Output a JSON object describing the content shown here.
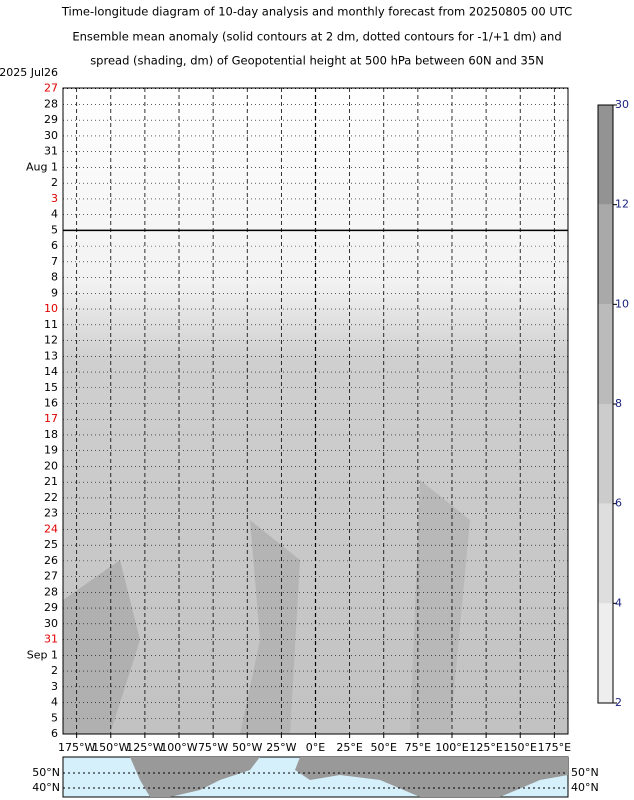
{
  "chart_data": {
    "type": "hovmoller",
    "title": [
      "Time-longitude diagram of 10-day analysis and monthly forecast from 20250805 00 UTC",
      "Ensemble mean anomaly (solid contours at 2 dm, dotted contours for -1/+1 dm) and",
      "spread (shading, dm) of Geopotential height at 500 hPa between 60N and 35N"
    ],
    "categories": [
      "2025  Jul26",
      "27",
      "28",
      "29",
      "30",
      "31",
      "Aug 1",
      "2",
      "3",
      "4",
      "5",
      "6",
      "7",
      "8",
      "9",
      "10",
      "11",
      "12",
      "13",
      "14",
      "15",
      "16",
      "17",
      "18",
      "19",
      "20",
      "21",
      "22",
      "23",
      "24",
      "25",
      "26",
      "27",
      "28",
      "29",
      "30",
      "31",
      "Sep 1",
      "2",
      "3",
      "4",
      "5",
      "6"
    ],
    "category_colors": [
      "#000000",
      "#e00000",
      "#000000",
      "#000000",
      "#000000",
      "#000000",
      "#000000",
      "#000000",
      "#e00000",
      "#000000",
      "#000000",
      "#000000",
      "#000000",
      "#000000",
      "#000000",
      "#e00000",
      "#000000",
      "#000000",
      "#000000",
      "#000000",
      "#000000",
      "#000000",
      "#e00000",
      "#000000",
      "#000000",
      "#000000",
      "#000000",
      "#000000",
      "#000000",
      "#e00000",
      "#000000",
      "#000000",
      "#000000",
      "#000000",
      "#000000",
      "#000000",
      "#e00000",
      "#000000",
      "#000000",
      "#000000",
      "#000000",
      "#000000",
      "#000000"
    ],
    "xlim": [
      -185,
      185
    ],
    "xticks": [
      {
        "value": -175,
        "label": "175°W"
      },
      {
        "value": -150,
        "label": "150°W"
      },
      {
        "value": -125,
        "label": "125°W"
      },
      {
        "value": -100,
        "label": "100°W"
      },
      {
        "value": -75,
        "label": "75°W"
      },
      {
        "value": -50,
        "label": "50°W"
      },
      {
        "value": -25,
        "label": "25°W"
      },
      {
        "value": 0,
        "label": "0°E"
      },
      {
        "value": 25,
        "label": "25°E"
      },
      {
        "value": 50,
        "label": "50°E"
      },
      {
        "value": 75,
        "label": "75°E"
      },
      {
        "value": 100,
        "label": "100°E"
      },
      {
        "value": 125,
        "label": "125°E"
      },
      {
        "value": 150,
        "label": "150°E"
      },
      {
        "value": 175,
        "label": "175°E"
      }
    ],
    "colorbar": {
      "ticks": [
        2,
        4,
        6,
        8,
        10,
        12,
        30
      ],
      "colors": [
        "#eeeeee",
        "#dedede",
        "#cccccc",
        "#bbbbbb",
        "#a9a9a9",
        "#939393"
      ]
    },
    "map_labels": [
      "50°N",
      "40°N"
    ]
  }
}
